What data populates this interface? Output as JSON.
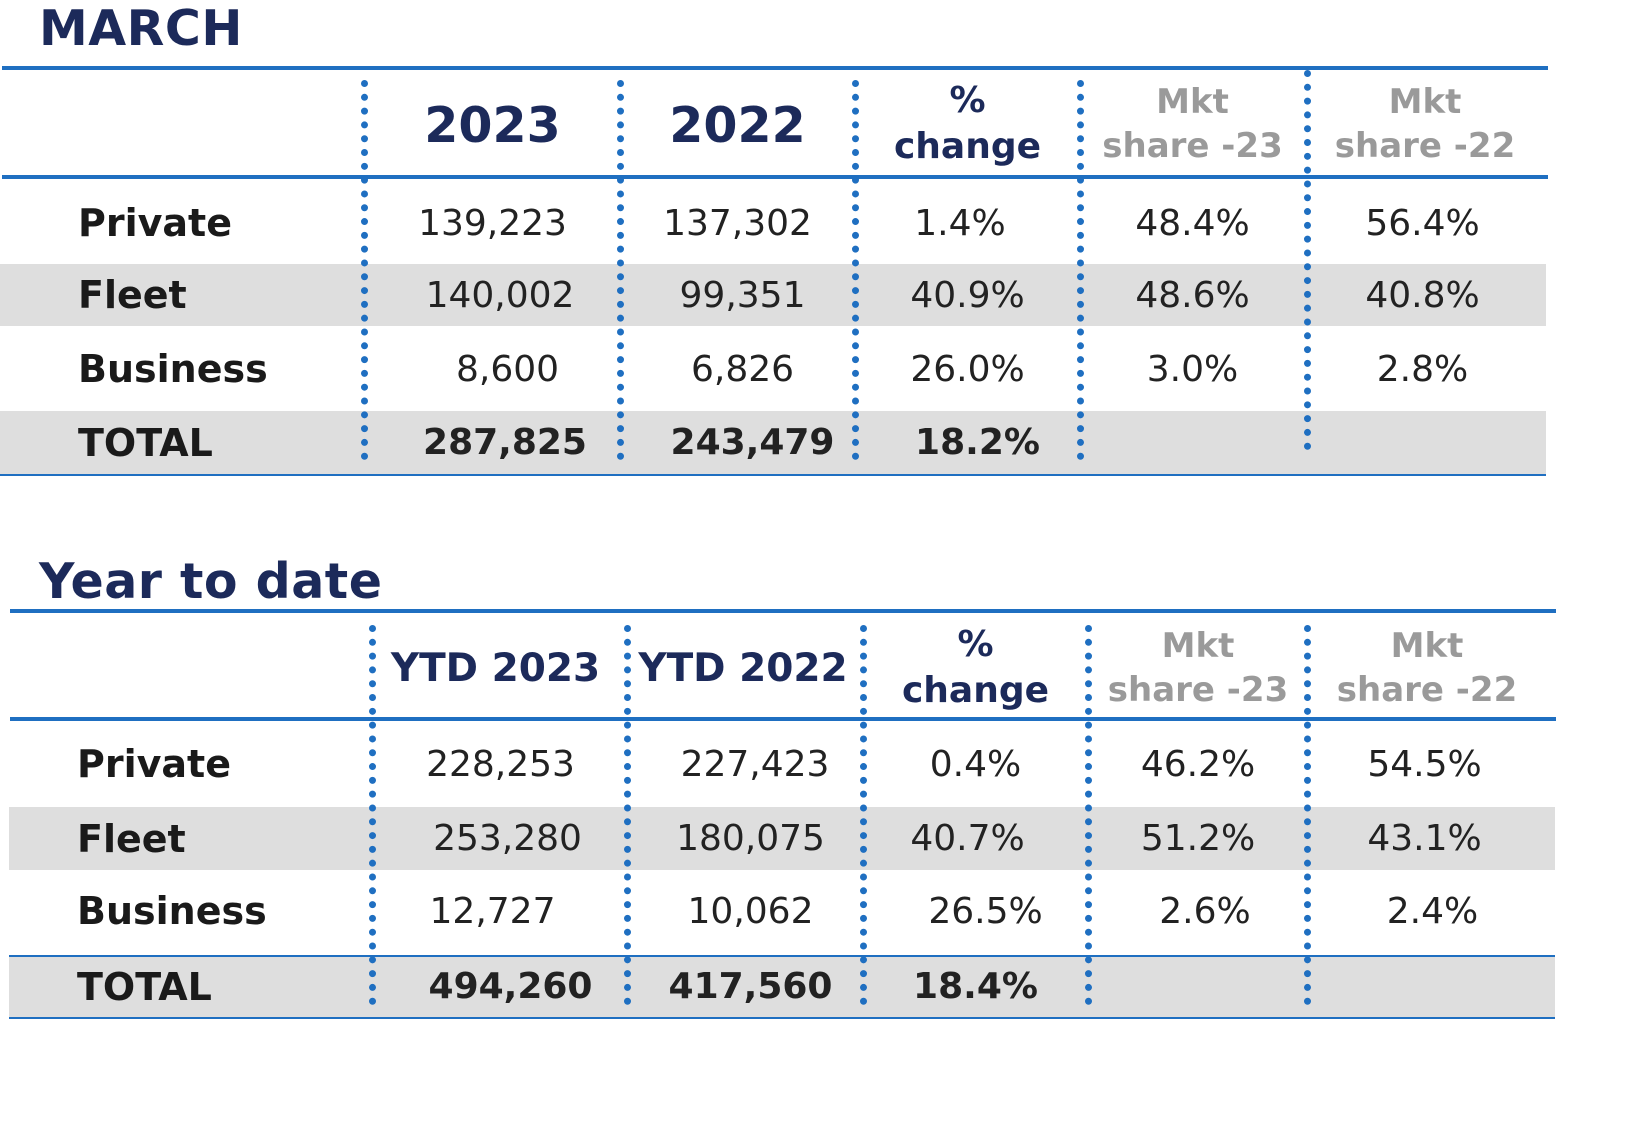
{
  "march": {
    "title": "MARCH",
    "headers": {
      "col1": "2023",
      "col2": "2022",
      "pct_line1": "%",
      "pct_line2": "change",
      "mkt23_line1": "Mkt",
      "mkt23_line2": "share -23",
      "mkt22_line1": "Mkt",
      "mkt22_line2": "share -22"
    },
    "rows": [
      {
        "label": "Private",
        "v1": "139,223",
        "v2": "137,302",
        "pct": "1.4%",
        "m23": "48.4%",
        "m22": "56.4%"
      },
      {
        "label": "Fleet",
        "v1": "140,002",
        "v2": "99,351",
        "pct": "40.9%",
        "m23": "48.6%",
        "m22": "40.8%"
      },
      {
        "label": "Business",
        "v1": "8,600",
        "v2": "6,826",
        "pct": "26.0%",
        "m23": "3.0%",
        "m22": "2.8%"
      }
    ],
    "total": {
      "label": "TOTAL",
      "v1": "287,825",
      "v2": "243,479",
      "pct": "18.2%"
    }
  },
  "ytd": {
    "title": "Year to date",
    "headers": {
      "col1": "YTD 2023",
      "col2": "YTD 2022",
      "pct_line1": "%",
      "pct_line2": "change",
      "mkt23_line1": "Mkt",
      "mkt23_line2": "share -23",
      "mkt22_line1": "Mkt",
      "mkt22_line2": "share -22"
    },
    "rows": [
      {
        "label": "Private",
        "v1": "228,253",
        "v2": "227,423",
        "pct": "0.4%",
        "m23": "46.2%",
        "m22": "54.5%"
      },
      {
        "label": "Fleet",
        "v1": "253,280",
        "v2": "180,075",
        "pct": "40.7%",
        "m23": "51.2%",
        "m22": "43.1%"
      },
      {
        "label": "Business",
        "v1": "12,727",
        "v2": "10,062",
        "pct": "26.5%",
        "m23": "2.6%",
        "m22": "2.4%"
      }
    ],
    "total": {
      "label": "TOTAL",
      "v1": "494,260",
      "v2": "417,560",
      "pct": "18.4%"
    }
  },
  "colors": {
    "accent_blue": "#1f6fc1",
    "title_navy": "#1c2a5a",
    "row_shade": "#dedede",
    "muted_grey": "#9a9a9a"
  }
}
